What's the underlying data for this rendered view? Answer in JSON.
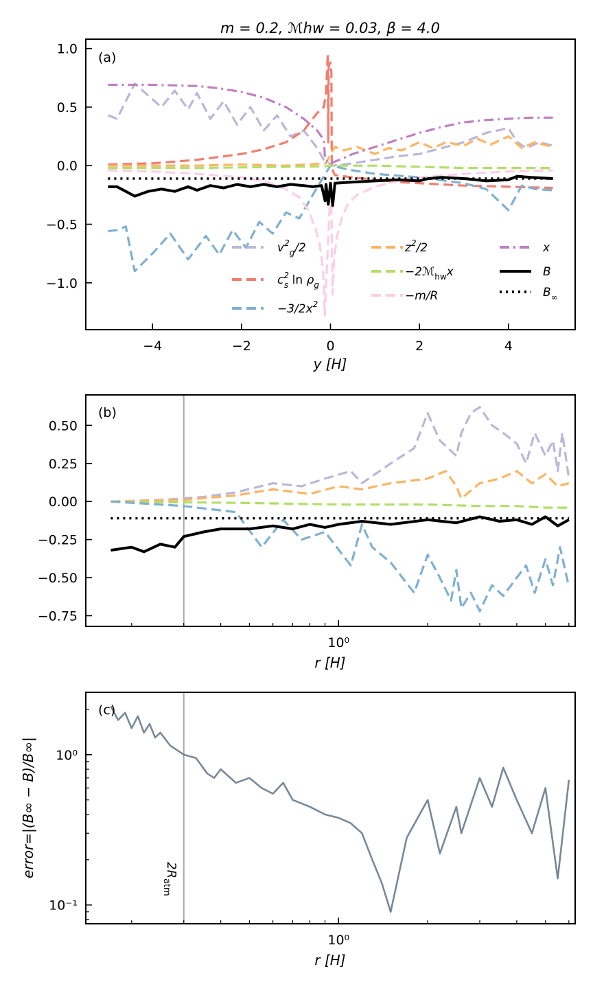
{
  "figure": {
    "title": "m = 0.2,  ℳhw = 0.03,  β = 4.0"
  },
  "chart_data": [
    {
      "panel": "(a)",
      "type": "line",
      "xlabel": "y [H]",
      "ylabel": "",
      "xlim": [
        -5.5,
        5.5
      ],
      "ylim": [
        -1.4,
        1.08
      ],
      "xticks": [
        -4,
        -2,
        0,
        2,
        4
      ],
      "xtick_labels": [
        "−4",
        "−2",
        "0",
        "2",
        "4"
      ],
      "yticks": [
        1.0,
        0.5,
        0.0,
        -0.5,
        -1.0
      ],
      "ytick_labels": [
        "1.0",
        "0.5",
        "0.0",
        "−0.5",
        "−1.0"
      ],
      "legend_position": "lower-right",
      "series": [
        {
          "name": "vg²/2",
          "legend": "v_g^2/2",
          "color": "#bcb6d9",
          "style": "dashed",
          "x": [
            -5,
            -4.8,
            -4.6,
            -4.4,
            -4.1,
            -3.8,
            -3.5,
            -3.2,
            -3.0,
            -2.7,
            -2.4,
            -2.1,
            -1.8,
            -1.5,
            -1.2,
            -0.9,
            -0.6,
            -0.3,
            -0.15,
            0.05,
            0.5,
            1,
            1.5,
            2,
            2.5,
            3,
            3.5,
            4,
            4.2,
            4.4,
            4.7,
            5
          ],
          "y": [
            0.43,
            0.4,
            0.55,
            0.7,
            0.6,
            0.5,
            0.64,
            0.48,
            0.62,
            0.4,
            0.55,
            0.35,
            0.5,
            0.3,
            0.43,
            0.25,
            0.3,
            0.15,
            0.05,
            0.0,
            0.02,
            0.05,
            0.08,
            0.1,
            0.15,
            0.2,
            0.28,
            0.32,
            0.2,
            0.15,
            0.2,
            0.17
          ]
        },
        {
          "name": "cs² ln ρg",
          "legend": "c_s^2 ln ρ_g",
          "color": "#f27d6e",
          "style": "dashed",
          "x": [
            -5,
            -4,
            -3,
            -2,
            -1.5,
            -1,
            -0.6,
            -0.3,
            -0.15,
            -0.1,
            -0.06,
            -0.05,
            -0.04,
            0,
            0.02,
            0.03,
            0.05,
            0.1,
            0.5,
            1,
            1.5,
            2,
            3,
            4,
            5
          ],
          "y": [
            0.01,
            0.02,
            0.05,
            0.1,
            0.14,
            0.2,
            0.3,
            0.45,
            0.5,
            0.62,
            0.96,
            0.2,
            0.85,
            0.88,
            0.8,
            0.0,
            -0.04,
            -0.08,
            -0.1,
            -0.12,
            -0.14,
            -0.15,
            -0.17,
            -0.18,
            -0.19
          ]
        },
        {
          "name": "−3/2x²",
          "legend": "−3/2x^2",
          "color": "#7fb0d2",
          "style": "dashed",
          "x": [
            -5,
            -4.8,
            -4.6,
            -4.4,
            -4.0,
            -3.6,
            -3.2,
            -2.8,
            -2.5,
            -2.2,
            -1.9,
            -1.6,
            -1.3,
            -1.0,
            -0.7,
            -0.4,
            -0.1,
            0,
            0.5,
            1,
            2,
            3,
            3.5,
            4,
            4.3,
            4.6,
            5
          ],
          "y": [
            -0.56,
            -0.55,
            -0.52,
            -0.9,
            -0.75,
            -0.58,
            -0.8,
            -0.6,
            -0.76,
            -0.55,
            -0.7,
            -0.48,
            -0.58,
            -0.4,
            -0.45,
            -0.25,
            -0.06,
            0,
            -0.04,
            -0.07,
            -0.1,
            -0.15,
            -0.2,
            -0.38,
            -0.17,
            -0.2,
            -0.21
          ]
        },
        {
          "name": "z²/2",
          "legend": "z^2/2",
          "color": "#fdb462",
          "style": "dashed",
          "x": [
            -5,
            -4,
            -3,
            -2,
            -1,
            -0.5,
            -0.1,
            0,
            0.1,
            0.3,
            0.6,
            1,
            1.3,
            1.6,
            2,
            2.3,
            2.6,
            3,
            3.3,
            3.6,
            4,
            4.3,
            4.6,
            5
          ],
          "y": [
            0.0,
            0.0,
            0.0,
            0.01,
            0.0,
            0.01,
            0.02,
            0.1,
            0.16,
            0.13,
            0.16,
            0.1,
            0.15,
            0.13,
            0.2,
            0.15,
            0.2,
            0.17,
            0.23,
            0.18,
            0.25,
            0.15,
            0.2,
            0.16
          ]
        },
        {
          "name": "−2ℳhw x",
          "legend": "−2ℳ_hw x",
          "color": "#b3de69",
          "style": "dashed",
          "x": [
            -5,
            -3,
            -1,
            -0.1,
            0,
            1,
            2,
            3,
            4,
            5
          ],
          "y": [
            -0.02,
            -0.02,
            -0.01,
            -0.005,
            0.0,
            0.0,
            -0.01,
            -0.02,
            -0.02,
            -0.02
          ]
        },
        {
          "name": "−m/R",
          "legend": "−m/R",
          "color": "#fbcfe4",
          "style": "dashed",
          "x": [
            -5,
            -4,
            -3,
            -2,
            -1.5,
            -1,
            -0.7,
            -0.5,
            -0.35,
            -0.25,
            -0.18,
            -0.15,
            -0.13,
            0.0,
            0.02,
            0.05,
            0.08,
            0.15,
            0.25,
            0.4,
            0.6,
            1,
            1.5,
            2,
            3,
            4,
            5
          ],
          "y": [
            -0.04,
            -0.05,
            -0.07,
            -0.1,
            -0.13,
            -0.2,
            -0.27,
            -0.38,
            -0.52,
            -0.65,
            -0.85,
            -1.0,
            -1.28,
            -0.2,
            -0.35,
            -1.1,
            -0.8,
            -0.6,
            -0.45,
            -0.32,
            -0.25,
            -0.18,
            -0.13,
            -0.1,
            -0.07,
            -0.05,
            -0.04
          ]
        },
        {
          "name": "x",
          "legend": "x",
          "color": "#be80c0",
          "style": "dashdot",
          "x": [
            -5,
            -4,
            -3,
            -2.5,
            -2,
            -1.5,
            -1,
            -0.6,
            -0.3,
            -0.15,
            -0.12,
            0,
            0.2,
            0.5,
            1,
            1.5,
            2,
            2.5,
            3,
            3.5,
            4,
            4.5,
            5
          ],
          "y": [
            0.69,
            0.69,
            0.68,
            0.66,
            0.63,
            0.58,
            0.5,
            0.4,
            0.3,
            0.22,
            0.05,
            0.02,
            0.05,
            0.1,
            0.16,
            0.22,
            0.28,
            0.33,
            0.37,
            0.39,
            0.4,
            0.41,
            0.41
          ]
        },
        {
          "name": "B",
          "legend": "B",
          "color": "#000000",
          "style": "solid",
          "x": [
            -5,
            -4.8,
            -4.6,
            -4.4,
            -4.1,
            -3.8,
            -3.5,
            -3.2,
            -3.0,
            -2.7,
            -2.4,
            -2.1,
            -1.8,
            -1.5,
            -1.2,
            -0.9,
            -0.6,
            -0.4,
            -0.2,
            -0.12,
            -0.1,
            -0.05,
            0,
            0.05,
            0.1,
            0.5,
            1,
            1.5,
            2,
            2.2,
            2.5,
            3,
            3.5,
            4,
            4.2,
            4.5,
            5
          ],
          "y": [
            -0.18,
            -0.18,
            -0.22,
            -0.26,
            -0.22,
            -0.2,
            -0.22,
            -0.18,
            -0.21,
            -0.17,
            -0.19,
            -0.16,
            -0.18,
            -0.16,
            -0.18,
            -0.16,
            -0.17,
            -0.18,
            -0.17,
            -0.3,
            -0.16,
            -0.33,
            -0.15,
            -0.34,
            -0.15,
            -0.14,
            -0.13,
            -0.12,
            -0.13,
            -0.11,
            -0.1,
            -0.11,
            -0.13,
            -0.12,
            -0.09,
            -0.1,
            -0.11
          ]
        },
        {
          "name": "B∞",
          "legend": "B_∞",
          "color": "#000000",
          "style": "dotted",
          "x": [
            -5,
            5
          ],
          "y": [
            -0.11,
            -0.11
          ]
        }
      ]
    },
    {
      "panel": "(b)",
      "type": "line",
      "xscale": "log",
      "xlabel": "r [H]",
      "ylabel": "",
      "xlim": [
        0.14,
        6.3
      ],
      "ylim": [
        -0.82,
        0.7
      ],
      "xticks": [
        1.0
      ],
      "xtick_labels": [
        "10⁰"
      ],
      "yticks": [
        0.5,
        0.25,
        0.0,
        -0.25,
        -0.5,
        -0.75
      ],
      "ytick_labels": [
        "0.50",
        "0.25",
        "0.00",
        "−0.25",
        "−0.50",
        "−0.75"
      ],
      "vline_x": 0.3,
      "series": [
        {
          "name": "vg²/2",
          "color": "#bcb6d9",
          "style": "dashed",
          "x": [
            0.17,
            0.25,
            0.35,
            0.45,
            0.6,
            0.75,
            0.9,
            1.1,
            1.2,
            1.5,
            1.8,
            2.0,
            2.2,
            2.5,
            2.6,
            2.8,
            3.0,
            3.3,
            3.6,
            4.0,
            4.3,
            4.6,
            5.0,
            5.3,
            5.5,
            5.7,
            6.0
          ],
          "y": [
            0.0,
            0.01,
            0.03,
            0.06,
            0.12,
            0.1,
            0.15,
            0.2,
            0.12,
            0.25,
            0.35,
            0.58,
            0.4,
            0.3,
            0.45,
            0.58,
            0.62,
            0.5,
            0.45,
            0.38,
            0.25,
            0.45,
            0.3,
            0.4,
            0.2,
            0.45,
            0.15
          ]
        },
        {
          "name": "z²/2",
          "color": "#fdb462",
          "style": "dashed",
          "x": [
            0.17,
            0.3,
            0.45,
            0.6,
            0.8,
            1.0,
            1.2,
            1.5,
            2.0,
            2.3,
            2.5,
            2.6,
            3.0,
            3.5,
            4.0,
            4.5,
            5.0,
            5.5,
            6.0
          ],
          "y": [
            0.0,
            0.01,
            0.04,
            0.08,
            0.05,
            0.1,
            0.08,
            0.12,
            0.15,
            0.2,
            0.1,
            0.02,
            0.12,
            0.15,
            0.2,
            0.12,
            0.18,
            0.1,
            0.12
          ]
        },
        {
          "name": "−2ℳhw x",
          "color": "#b3de69",
          "style": "dashed",
          "x": [
            0.17,
            0.5,
            1.0,
            2.0,
            3.0,
            4.0,
            5.0,
            6.0
          ],
          "y": [
            0.0,
            -0.01,
            -0.02,
            -0.02,
            -0.03,
            -0.03,
            -0.04,
            -0.04
          ]
        },
        {
          "name": "−3/2x²",
          "color": "#7fb0d2",
          "style": "dashed",
          "x": [
            0.17,
            0.3,
            0.45,
            0.55,
            0.65,
            0.75,
            0.9,
            1.1,
            1.2,
            1.3,
            1.5,
            1.8,
            2.0,
            2.2,
            2.4,
            2.5,
            2.6,
            2.8,
            3.0,
            3.3,
            3.6,
            4.0,
            4.3,
            4.6,
            5.0,
            5.3,
            5.6,
            6.0
          ],
          "y": [
            0.0,
            -0.03,
            -0.07,
            -0.3,
            -0.12,
            -0.25,
            -0.2,
            -0.42,
            -0.15,
            -0.3,
            -0.4,
            -0.6,
            -0.35,
            -0.5,
            -0.65,
            -0.45,
            -0.7,
            -0.6,
            -0.72,
            -0.55,
            -0.62,
            -0.5,
            -0.42,
            -0.6,
            -0.38,
            -0.55,
            -0.3,
            -0.56
          ]
        },
        {
          "name": "B",
          "color": "#000000",
          "style": "solid",
          "x": [
            0.17,
            0.2,
            0.22,
            0.25,
            0.28,
            0.3,
            0.35,
            0.4,
            0.5,
            0.6,
            0.7,
            0.8,
            0.9,
            1.0,
            1.2,
            1.5,
            2.0,
            2.5,
            3.0,
            3.5,
            4.0,
            4.5,
            5.0,
            5.5,
            6.0
          ],
          "y": [
            -0.32,
            -0.3,
            -0.33,
            -0.28,
            -0.3,
            -0.23,
            -0.2,
            -0.18,
            -0.18,
            -0.16,
            -0.18,
            -0.15,
            -0.17,
            -0.15,
            -0.13,
            -0.15,
            -0.12,
            -0.14,
            -0.1,
            -0.13,
            -0.12,
            -0.15,
            -0.1,
            -0.16,
            -0.12
          ]
        },
        {
          "name": "B∞",
          "color": "#000000",
          "style": "dotted",
          "x": [
            0.17,
            6.0
          ],
          "y": [
            -0.11,
            -0.11
          ]
        }
      ]
    },
    {
      "panel": "(c)",
      "type": "line",
      "xscale": "log",
      "yscale": "log",
      "xlabel": "r [H]",
      "ylabel": "error=|(B∞ − B)/B∞|",
      "xlim": [
        0.14,
        6.3
      ],
      "ylim": [
        0.075,
        2.6
      ],
      "xticks": [
        1.0
      ],
      "xtick_labels": [
        "10⁰"
      ],
      "yticks": [
        1.0,
        0.1
      ],
      "ytick_labels": [
        "10⁰",
        "10⁻¹"
      ],
      "vline_x": 0.3,
      "vline_label": "2R_atm",
      "series": [
        {
          "name": "error",
          "color": "#778899",
          "style": "solid",
          "x": [
            0.17,
            0.18,
            0.19,
            0.2,
            0.21,
            0.22,
            0.23,
            0.24,
            0.25,
            0.27,
            0.3,
            0.33,
            0.36,
            0.38,
            0.4,
            0.45,
            0.5,
            0.55,
            0.6,
            0.65,
            0.7,
            0.8,
            0.9,
            1.0,
            1.1,
            1.2,
            1.3,
            1.4,
            1.5,
            1.7,
            2.0,
            2.2,
            2.5,
            2.6,
            3.0,
            3.3,
            3.6,
            4.0,
            4.5,
            5.0,
            5.5,
            6.0
          ],
          "y": [
            2.1,
            1.7,
            1.9,
            1.5,
            1.8,
            1.4,
            1.6,
            1.3,
            1.4,
            1.15,
            1.0,
            0.95,
            0.75,
            0.7,
            0.8,
            0.65,
            0.7,
            0.6,
            0.55,
            0.65,
            0.5,
            0.45,
            0.4,
            0.38,
            0.35,
            0.3,
            0.2,
            0.14,
            0.09,
            0.28,
            0.5,
            0.22,
            0.45,
            0.3,
            0.7,
            0.45,
            0.82,
            0.5,
            0.3,
            0.6,
            0.15,
            0.68
          ]
        }
      ]
    }
  ]
}
